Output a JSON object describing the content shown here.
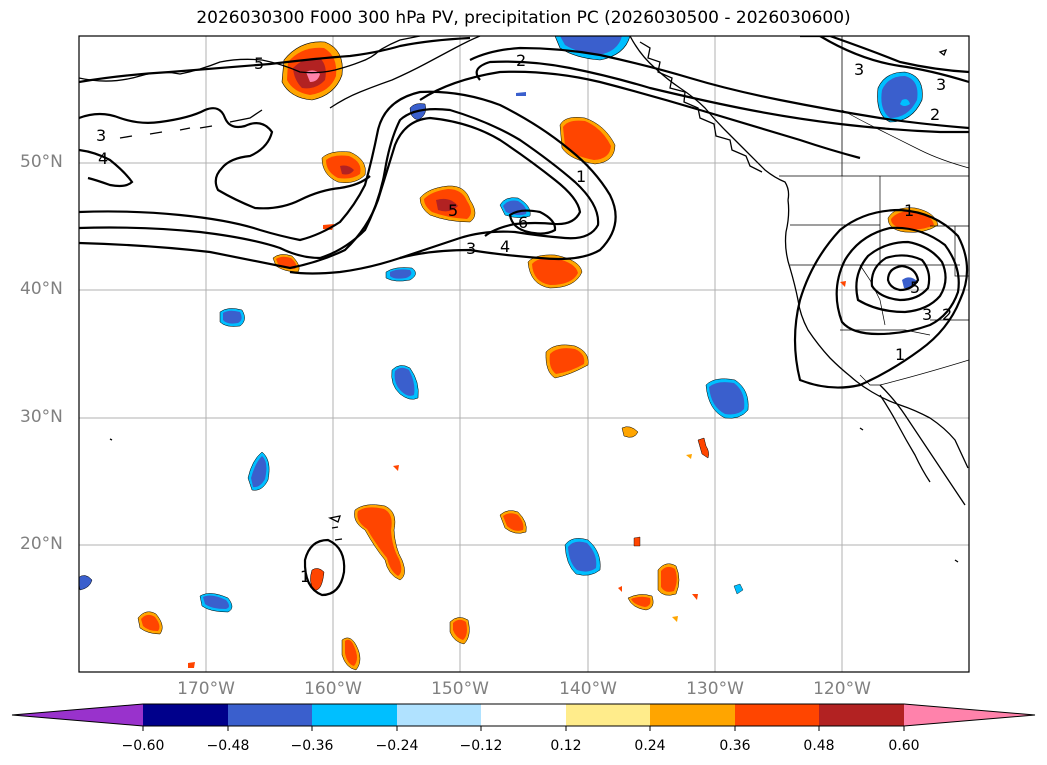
{
  "title": "2026030300 F000 300 hPa PV, precipitation PC (2026030500 - 2026030600)",
  "map": {
    "lat_labels": [
      "50°N",
      "40°N",
      "30°N",
      "20°N"
    ],
    "lon_labels": [
      "170°W",
      "160°W",
      "150°W",
      "140°W",
      "130°W",
      "120°W"
    ],
    "lon_values": [
      -170,
      -160,
      -150,
      -140,
      -130,
      -120
    ],
    "lat_values": [
      50,
      40,
      30,
      20
    ],
    "extent": {
      "lon_min": -180,
      "lon_max": -110,
      "lat_min": 10,
      "lat_max": 60
    },
    "grid": true
  },
  "pv_contour_labels": [
    "5",
    "2",
    "3",
    "3",
    "2",
    "3",
    "4",
    "1",
    "5",
    "6",
    "4",
    "3",
    "1",
    "5",
    "3",
    "2",
    "1",
    "1"
  ],
  "colorbar": {
    "tick_labels": [
      "−0.60",
      "−0.48",
      "−0.36",
      "−0.24",
      "−0.12",
      "0.12",
      "0.24",
      "0.36",
      "0.48",
      "0.60"
    ],
    "colors": [
      "#9932cc",
      "#00008b",
      "#3a5fcd",
      "#00bfff",
      "#b0e2ff",
      "#ffffff",
      "#ffec8b",
      "#ffa500",
      "#ff4500",
      "#b22222",
      "#ff82ab"
    ]
  }
}
